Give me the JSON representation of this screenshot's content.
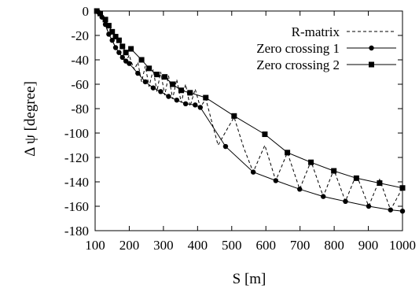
{
  "chart_data": {
    "type": "line",
    "title": "",
    "xlabel": "S [m]",
    "ylabel": "Δ ψ [degree]",
    "xlim": [
      100,
      1000
    ],
    "ylim": [
      -180,
      0
    ],
    "xticks": [
      100,
      200,
      300,
      400,
      500,
      600,
      700,
      800,
      900,
      1000
    ],
    "yticks": [
      0,
      -20,
      -40,
      -60,
      -80,
      -100,
      -120,
      -140,
      -160,
      -180
    ],
    "x_tick_labels": [
      "100",
      "200",
      "300",
      "400",
      "500",
      "600",
      "700",
      "800",
      "900",
      "1000"
    ],
    "y_tick_labels": [
      "0",
      "-20",
      "-40",
      "-60",
      "-80",
      "-100",
      "-120",
      "-140",
      "-160",
      "-180"
    ],
    "grid": false,
    "legend_position": "top-right",
    "series": [
      {
        "name": "R-matrix",
        "style": "dashed",
        "marker": "none",
        "color": "#000000",
        "x": [
          105,
          110,
          115,
          120,
          130,
          140,
          150,
          160,
          170,
          180,
          190,
          200,
          205,
          215,
          225,
          236,
          247,
          258,
          270,
          281,
          292,
          304,
          315,
          327,
          339,
          352,
          365,
          378,
          393,
          408,
          424,
          441,
          460,
          482,
          507,
          535,
          563,
          597,
          629,
          663,
          699,
          732,
          768,
          799,
          833,
          865,
          901,
          933,
          965,
          1000
        ],
        "y": [
          0,
          -3,
          -2,
          -5,
          -11,
          -19,
          -24,
          -30,
          -34,
          -38,
          -42,
          -36,
          -41,
          -48,
          -42,
          -58,
          -45,
          -62,
          -48,
          -66,
          -50,
          -69,
          -53,
          -72,
          -56,
          -75,
          -60,
          -78,
          -64,
          -79,
          -72,
          -90,
          -110,
          -99,
          -87,
          -112,
          -132,
          -110,
          -139,
          -116,
          -146,
          -123,
          -152,
          -130,
          -156,
          -134,
          -160,
          -138,
          -163,
          -145
        ]
      },
      {
        "name": "Zero crossing 1",
        "style": "solid",
        "marker": "circle",
        "color": "#000000",
        "x": [
          110,
          120,
          130,
          140,
          150,
          160,
          170,
          180,
          190,
          200,
          225,
          247,
          270,
          292,
          315,
          339,
          365,
          393,
          408,
          482,
          563,
          629,
          699,
          768,
          833,
          901,
          965,
          1000
        ],
        "y": [
          -1,
          -5,
          -11,
          -19,
          -24,
          -30,
          -34,
          -38,
          -41,
          -43,
          -51,
          -58,
          -63,
          -66,
          -70,
          -73,
          -76,
          -77,
          -79,
          -111,
          -132,
          -139,
          -146,
          -152,
          -156,
          -160,
          -163,
          -164
        ]
      },
      {
        "name": "Zero crossing 2",
        "style": "solid",
        "marker": "square",
        "color": "#000000",
        "x": [
          105,
          115,
          130,
          140,
          150,
          160,
          170,
          180,
          190,
          205,
          236,
          258,
          281,
          304,
          327,
          352,
          378,
          424,
          507,
          597,
          663,
          732,
          799,
          865,
          933,
          1000
        ],
        "y": [
          0,
          -2,
          -7,
          -12,
          -17,
          -21,
          -24,
          -29,
          -34,
          -31,
          -40,
          -47,
          -52,
          -54,
          -60,
          -65,
          -67,
          -71,
          -86,
          -101,
          -116,
          -124,
          -131,
          -137,
          -141,
          -145
        ]
      }
    ]
  }
}
